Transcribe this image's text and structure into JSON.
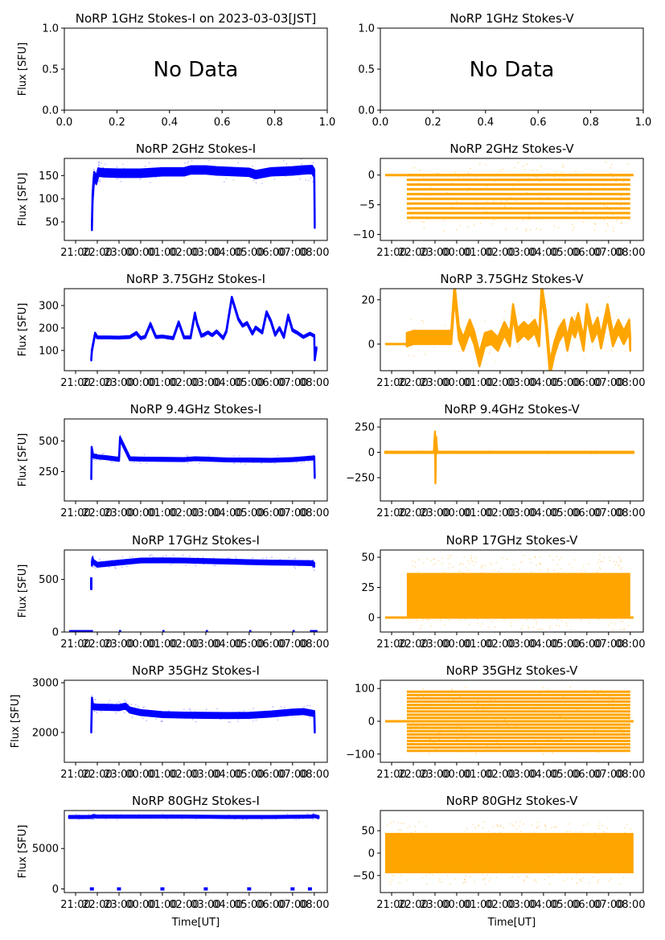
{
  "figure": {
    "time_ticks": [
      "21:00",
      "22:00",
      "23:00",
      "00:00",
      "01:00",
      "02:00",
      "03:00",
      "04:00",
      "05:00",
      "06:00",
      "07:00",
      "08:00"
    ],
    "time_tick_values_hours_after_2100": [
      0,
      1,
      2,
      3,
      4,
      5,
      6,
      7,
      8,
      9,
      10,
      11
    ],
    "time_xlim_hours_after_2100": [
      -0.52,
      11.6
    ],
    "xlabel": "Time[UT]",
    "ylabel": "Flux [SFU]",
    "colors": {
      "stokes_i": "#0000ff",
      "stokes_v": "#ffa500",
      "axes": "#000000"
    }
  },
  "chart_data": [
    {
      "id": "1ghz-i",
      "type": "line",
      "title": "NoRP 1GHz Stokes-I on 2023-03-03[JST]",
      "ylabel": "Flux [SFU]",
      "xlabel": "",
      "no_data": true,
      "annotation": "No Data",
      "xlim": [
        0,
        1
      ],
      "ylim": [
        0,
        1
      ],
      "xticks": [
        "0.0",
        "0.2",
        "0.4",
        "0.6",
        "0.8",
        "1.0"
      ],
      "yticks": [
        "0.0",
        "0.5",
        "1.0"
      ],
      "ytick_values": [
        0,
        0.5,
        1
      ]
    },
    {
      "id": "1ghz-v",
      "type": "line",
      "title": "NoRP 1GHz Stokes-V",
      "ylabel": "",
      "xlabel": "",
      "no_data": true,
      "annotation": "No Data",
      "xlim": [
        0,
        1
      ],
      "ylim": [
        0,
        1
      ],
      "xticks": [
        "0.0",
        "0.2",
        "0.4",
        "0.6",
        "0.8",
        "1.0"
      ],
      "yticks": [
        "0.0",
        "0.5",
        "1.0"
      ],
      "ytick_values": [
        0,
        0.5,
        1
      ]
    },
    {
      "id": "2ghz-i",
      "type": "scatter",
      "title": "NoRP 2GHz Stokes-I",
      "ylabel": "Flux [SFU]",
      "xlabel": "",
      "series_color": "stokes_i",
      "ylim": [
        10,
        187
      ],
      "yticks": [
        "50",
        "100",
        "150"
      ],
      "ytick_values": [
        50,
        100,
        150
      ],
      "x": [
        0.75,
        0.78,
        0.82,
        0.86,
        0.95,
        1.05,
        1.1,
        1.3,
        2,
        3,
        4,
        5,
        5.3,
        6,
        6.5,
        7,
        8,
        8.3,
        9,
        10,
        10.5,
        10.9,
        11.0,
        11.02
      ],
      "y": [
        40,
        100,
        130,
        150,
        140,
        158,
        157,
        156,
        155,
        155,
        158,
        158,
        162,
        162,
        160,
        159,
        157,
        152,
        158,
        160,
        162,
        163,
        155,
        45
      ],
      "band": 8
    },
    {
      "id": "2ghz-v",
      "type": "scatter",
      "title": "NoRP 2GHz Stokes-V",
      "ylabel": "",
      "xlabel": "",
      "series_color": "stokes_v",
      "ylim": [
        -11,
        2.8
      ],
      "yticks": [
        "0",
        "−5",
        "−10"
      ],
      "ytick_values": [
        0,
        -5,
        -10
      ],
      "levels": [
        0,
        -0.8,
        -1.6,
        -2.4,
        -3.2,
        -4.0,
        -4.8,
        -5.6,
        -6.4,
        -7.2
      ],
      "levels_x_range": [
        0.7,
        11.0
      ],
      "baseline_x_range": [
        -0.3,
        11.15
      ],
      "sparse_range": [
        -9.5,
        2.2
      ]
    },
    {
      "id": "375ghz-i",
      "type": "line",
      "title": "NoRP 3.75GHz Stokes-I",
      "ylabel": "Flux [SFU]",
      "xlabel": "",
      "series_color": "stokes_i",
      "ylim": [
        10,
        375
      ],
      "yticks": [
        "100",
        "200",
        "300"
      ],
      "ytick_values": [
        100,
        200,
        300
      ],
      "x": [
        0.72,
        0.75,
        0.9,
        1.0,
        1.5,
        2,
        2.5,
        2.8,
        3.0,
        3.2,
        3.45,
        3.7,
        4,
        4.5,
        4.75,
        5.0,
        5.3,
        5.5,
        5.6,
        5.8,
        6.1,
        6.3,
        6.5,
        6.8,
        6.95,
        7.2,
        7.5,
        7.7,
        7.9,
        8.15,
        8.3,
        8.6,
        8.8,
        9.0,
        9.2,
        9.4,
        9.6,
        9.8,
        10.0,
        10.2,
        10.5,
        10.8,
        11.0,
        11.02,
        11.1
      ],
      "y": [
        60,
        100,
        175,
        158,
        158,
        157,
        160,
        178,
        155,
        160,
        218,
        160,
        162,
        155,
        225,
        158,
        158,
        265,
        220,
        165,
        180,
        168,
        185,
        155,
        185,
        335,
        240,
        210,
        222,
        175,
        202,
        180,
        270,
        230,
        170,
        200,
        160,
        255,
        190,
        180,
        160,
        175,
        165,
        60,
        110
      ],
      "band": 4
    },
    {
      "id": "375ghz-v",
      "type": "line",
      "title": "NoRP 3.75GHz Stokes-V",
      "ylabel": "",
      "xlabel": "",
      "series_color": "stokes_v",
      "ylim": [
        -12,
        25
      ],
      "yticks": [
        "0",
        "20"
      ],
      "ytick_values": [
        0,
        20
      ],
      "x": [
        0.7,
        1,
        1.5,
        2,
        2.5,
        2.75,
        2.9,
        3.1,
        3.3,
        3.6,
        3.8,
        4.05,
        4.3,
        4.6,
        4.9,
        5.2,
        5.45,
        5.6,
        5.8,
        6.1,
        6.3,
        6.6,
        6.8,
        6.92,
        7.1,
        7.3,
        7.5,
        7.7,
        7.95,
        8.1,
        8.3,
        8.45,
        8.6,
        8.85,
        9.0,
        9.25,
        9.5,
        9.65,
        9.95,
        10.2,
        10.45,
        10.7,
        10.95,
        11.0
      ],
      "y": [
        2,
        3,
        3,
        3,
        3,
        3,
        24,
        5,
        0,
        8,
        3,
        -7,
        2,
        3,
        0,
        7,
        2,
        15,
        4,
        7,
        5,
        8,
        2,
        24,
        12,
        -11,
        -2,
        4,
        8,
        0,
        9,
        6,
        11,
        0,
        15,
        4,
        9,
        1,
        15,
        2,
        8,
        3,
        8,
        0
      ],
      "band": 3,
      "baseline_x_range": [
        -0.3,
        0.7
      ]
    },
    {
      "id": "94ghz-i",
      "type": "line",
      "title": "NoRP 9.4GHz Stokes-I",
      "ylabel": "Flux [SFU]",
      "xlabel": "",
      "series_color": "stokes_i",
      "ylim": [
        10,
        680
      ],
      "yticks": [
        "250",
        "500"
      ],
      "ytick_values": [
        250,
        500
      ],
      "x": [
        0.72,
        0.74,
        0.8,
        1.0,
        1.5,
        2.0,
        2.05,
        2.5,
        3,
        4,
        5,
        5.5,
        6,
        7,
        8,
        9,
        10,
        10.5,
        11.0,
        11.02
      ],
      "y": [
        200,
        440,
        380,
        370,
        362,
        350,
        520,
        355,
        352,
        350,
        348,
        355,
        352,
        345,
        344,
        342,
        348,
        355,
        362,
        210
      ],
      "band": 12
    },
    {
      "id": "94ghz-v",
      "type": "line",
      "title": "NoRP 9.4GHz Stokes-V",
      "ylabel": "",
      "xlabel": "",
      "series_color": "stokes_v",
      "ylim": [
        -480,
        330
      ],
      "yticks": [
        "250",
        "0",
        "−250"
      ],
      "ytick_values": [
        250,
        0,
        -250
      ],
      "x": [
        -0.3,
        1.95,
        2.0,
        2.02,
        2.05,
        2.1,
        11.15
      ],
      "y": [
        0,
        0,
        200,
        -300,
        150,
        0,
        0
      ],
      "band": 6
    },
    {
      "id": "17ghz-i",
      "type": "line",
      "title": "NoRP 17GHz Stokes-I",
      "ylabel": "Flux [SFU]",
      "xlabel": "",
      "series_color": "stokes_i",
      "ylim": [
        0,
        780
      ],
      "yticks": [
        "0",
        "500"
      ],
      "ytick_values": [
        0,
        500
      ],
      "x": [
        0.75,
        0.78,
        0.8,
        1.0,
        2,
        3,
        4,
        5,
        6,
        7,
        8,
        9,
        10,
        10.9,
        11.0
      ],
      "y": [
        650,
        690,
        670,
        640,
        660,
        680,
        682,
        680,
        675,
        670,
        665,
        660,
        658,
        655,
        640
      ],
      "band": 18,
      "dropouts": [
        [
          0.72,
          460
        ]
      ],
      "zero_segments": [
        [
          -0.3,
          0.8
        ],
        [
          2,
          2.1
        ],
        [
          4,
          4.1
        ],
        [
          6,
          6.1
        ],
        [
          8,
          8.1
        ],
        [
          10,
          10.1
        ],
        [
          10.8,
          11.15
        ]
      ]
    },
    {
      "id": "17ghz-v",
      "type": "scatter",
      "title": "NoRP 17GHz Stokes-V",
      "ylabel": "",
      "xlabel": "",
      "series_color": "stokes_v",
      "ylim": [
        -12,
        56
      ],
      "yticks": [
        "0",
        "25",
        "50"
      ],
      "ytick_values": [
        0,
        25,
        50
      ],
      "band_x_range": [
        0.7,
        11.0
      ],
      "band_range": [
        0,
        37
      ],
      "sparse_range": [
        -10,
        52
      ],
      "baseline_x_range": [
        -0.3,
        11.15
      ]
    },
    {
      "id": "35ghz-i",
      "type": "line",
      "title": "NoRP 35GHz Stokes-I",
      "ylabel": "Flux [SFU]",
      "xlabel": "",
      "series_color": "stokes_i",
      "ylim": [
        1400,
        3050
      ],
      "yticks": [
        "2000",
        "3000"
      ],
      "ytick_values": [
        2000,
        3000
      ],
      "x": [
        0.72,
        0.75,
        0.8,
        1,
        2,
        2.3,
        2.5,
        3,
        4,
        5,
        6,
        7,
        8,
        9,
        10,
        10.5,
        11.0,
        11.02
      ],
      "y": [
        2050,
        2650,
        2520,
        2510,
        2500,
        2530,
        2450,
        2400,
        2360,
        2350,
        2345,
        2340,
        2345,
        2370,
        2410,
        2420,
        2380,
        2050
      ],
      "band": 50
    },
    {
      "id": "35ghz-v",
      "type": "scatter",
      "title": "NoRP 35GHz Stokes-V",
      "ylabel": "",
      "xlabel": "",
      "series_color": "stokes_v",
      "ylim": [
        -125,
        125
      ],
      "yticks": [
        "100",
        "0",
        "−100"
      ],
      "ytick_values": [
        100,
        0,
        -100
      ],
      "levels": [
        90,
        80,
        70,
        60,
        50,
        40,
        30,
        20,
        10,
        0,
        -10,
        -20,
        -30,
        -40,
        -50,
        -60,
        -70,
        -80,
        -90
      ],
      "levels_x_range": [
        0.7,
        11.0
      ],
      "baseline_x_range": [
        -0.3,
        11.15
      ],
      "sparse_range": [
        -100,
        105
      ]
    },
    {
      "id": "80ghz-i",
      "type": "line",
      "title": "NoRP 80GHz Stokes-I",
      "ylabel": "Flux [SFU]",
      "xlabel": "Time[UT]",
      "series_color": "stokes_i",
      "ylim": [
        -450,
        9700
      ],
      "yticks": [
        "0",
        "5000"
      ],
      "ytick_values": [
        0,
        5000
      ],
      "x": [
        -0.3,
        0.7,
        0.8,
        1.0,
        3,
        5,
        7,
        9,
        10.9,
        11.0,
        11.2
      ],
      "y": [
        8900,
        8900,
        9000,
        8950,
        8950,
        8950,
        8900,
        8900,
        8950,
        9000,
        8900
      ],
      "band": 120,
      "zero_marks": [
        0.75,
        2,
        4,
        6,
        8,
        10,
        10.8
      ]
    },
    {
      "id": "80ghz-v",
      "type": "scatter",
      "title": "NoRP 80GHz Stokes-V",
      "ylabel": "",
      "xlabel": "Time[UT]",
      "series_color": "stokes_v",
      "ylim": [
        -88,
        95
      ],
      "yticks": [
        "50",
        "0",
        "−50"
      ],
      "ytick_values": [
        50,
        0,
        -50
      ],
      "band_x_range": [
        -0.3,
        11.15
      ],
      "band_range": [
        -45,
        45
      ],
      "sparse_range": [
        -70,
        70
      ]
    }
  ]
}
